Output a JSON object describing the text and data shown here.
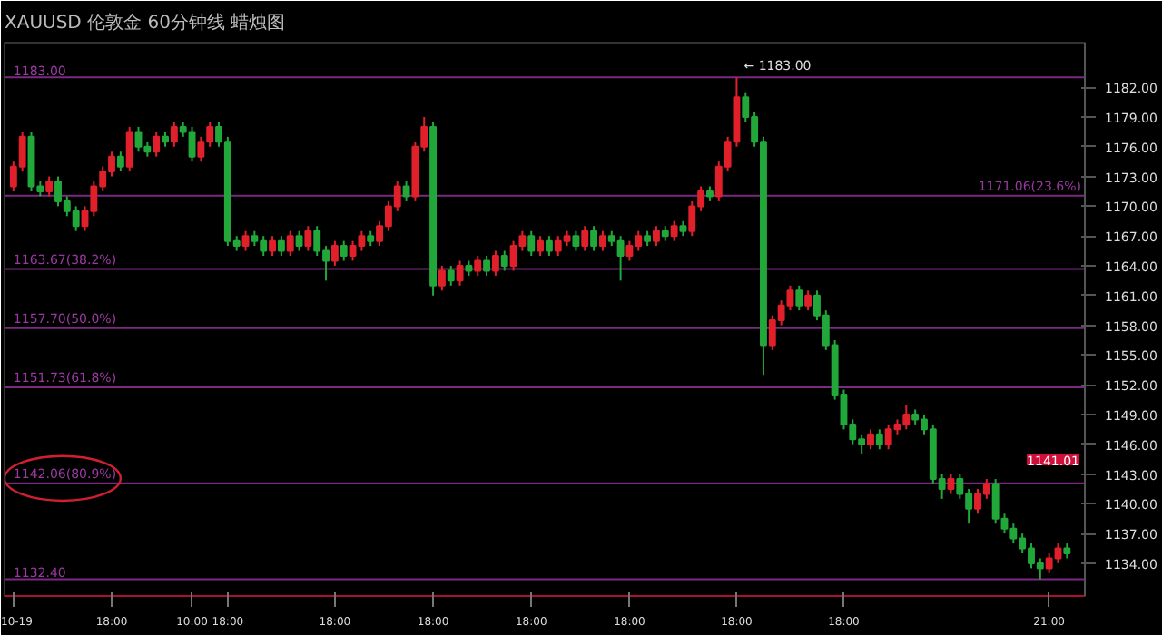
{
  "chart_data": {
    "type": "candlestick",
    "title": "XAUUSD 伦敦金 60分钟线 蜡烛图",
    "categories": [
      "10-19",
      null,
      null,
      null,
      null,
      null,
      null,
      null,
      null,
      null,
      null,
      "18:00",
      null,
      null,
      null,
      null,
      null,
      null,
      null,
      null,
      "10:00",
      null,
      null,
      null,
      "18:00",
      null,
      null,
      null,
      null,
      null,
      null,
      null,
      null,
      null,
      null,
      null,
      "18:00",
      null,
      null,
      null,
      null,
      null,
      null,
      null,
      null,
      null,
      null,
      "18:00",
      null,
      null,
      null,
      null,
      null,
      null,
      null,
      null,
      null,
      null,
      "18:00",
      null,
      null,
      null,
      null,
      null,
      null,
      null,
      null,
      null,
      null,
      "18:00",
      null,
      null,
      null,
      null,
      null,
      null,
      null,
      null,
      null,
      null,
      null,
      "18:00",
      null,
      null,
      null,
      null,
      null,
      null,
      null,
      null,
      null,
      null,
      null,
      "18:00",
      null,
      null,
      null,
      null,
      null,
      null,
      null,
      null,
      null,
      null,
      null,
      null,
      null,
      null,
      null,
      null,
      null,
      null,
      null,
      null,
      null,
      null,
      "21:00",
      null,
      null
    ],
    "ohlc": [
      [
        1172,
        1174.5,
        1171.5,
        1174
      ],
      [
        1174,
        1177.5,
        1173.5,
        1177
      ],
      [
        1177,
        1177.5,
        1171.5,
        1172
      ],
      [
        1172,
        1172.5,
        1171,
        1171.5
      ],
      [
        1171.5,
        1173,
        1171,
        1172.5
      ],
      [
        1172.5,
        1173,
        1170,
        1170.5
      ],
      [
        1170.5,
        1171,
        1169,
        1169.5
      ],
      [
        1169.5,
        1170,
        1167.5,
        1168
      ],
      [
        1168,
        1170,
        1167.5,
        1169.5
      ],
      [
        1169.5,
        1172.5,
        1169,
        1172
      ],
      [
        1172,
        1174,
        1171.5,
        1173.5
      ],
      [
        1173.5,
        1175.5,
        1173,
        1175
      ],
      [
        1175,
        1175.5,
        1173.5,
        1174
      ],
      [
        1174,
        1178,
        1173.5,
        1177.5
      ],
      [
        1177.5,
        1178,
        1175.5,
        1176
      ],
      [
        1176,
        1176.5,
        1175,
        1175.5
      ],
      [
        1175.5,
        1177.5,
        1175,
        1177
      ],
      [
        1177,
        1177.5,
        1176,
        1176.5
      ],
      [
        1176.5,
        1178.5,
        1176,
        1178
      ],
      [
        1178,
        1178.5,
        1177,
        1177.5
      ],
      [
        1177.5,
        1178,
        1174.5,
        1175
      ],
      [
        1175,
        1177,
        1174.5,
        1176.5
      ],
      [
        1176.5,
        1178.5,
        1176,
        1178
      ],
      [
        1178,
        1178.5,
        1176,
        1176.5
      ],
      [
        1176.5,
        1177,
        1166,
        1166.5
      ],
      [
        1166.5,
        1167,
        1165.5,
        1166
      ],
      [
        1166,
        1167.5,
        1165.5,
        1167
      ],
      [
        1167,
        1167.5,
        1166,
        1166.5
      ],
      [
        1166.5,
        1167,
        1165,
        1165.5
      ],
      [
        1165.5,
        1167,
        1165,
        1166.5
      ],
      [
        1166.5,
        1167,
        1165,
        1165.5
      ],
      [
        1165.5,
        1167.5,
        1165,
        1167
      ],
      [
        1167,
        1167.5,
        1165.5,
        1166
      ],
      [
        1166,
        1168,
        1165.5,
        1167.5
      ],
      [
        1167.5,
        1168,
        1165,
        1165.5
      ],
      [
        1165.5,
        1166,
        1162.5,
        1164.5
      ],
      [
        1164.5,
        1166.5,
        1164,
        1166
      ],
      [
        1166,
        1166.5,
        1164.5,
        1165
      ],
      [
        1165,
        1166.5,
        1164.5,
        1166
      ],
      [
        1166,
        1167.5,
        1165.5,
        1167
      ],
      [
        1167,
        1167.5,
        1166,
        1166.5
      ],
      [
        1166.5,
        1168.5,
        1166,
        1168
      ],
      [
        1168,
        1170.5,
        1167.5,
        1170
      ],
      [
        1170,
        1172.5,
        1169.5,
        1172
      ],
      [
        1172,
        1172.5,
        1170.5,
        1171
      ],
      [
        1171,
        1176.5,
        1170.5,
        1176
      ],
      [
        1176,
        1179,
        1175.5,
        1178
      ],
      [
        1178,
        1178.5,
        1161,
        1162
      ],
      [
        1162,
        1164,
        1161.5,
        1163.5
      ],
      [
        1163.5,
        1164,
        1162,
        1162.5
      ],
      [
        1162.5,
        1164.5,
        1162,
        1164
      ],
      [
        1164,
        1164.5,
        1163,
        1163.5
      ],
      [
        1163.5,
        1165,
        1163,
        1164.5
      ],
      [
        1164.5,
        1165,
        1163,
        1163.5
      ],
      [
        1163.5,
        1165.5,
        1163,
        1165
      ],
      [
        1165,
        1165.5,
        1163.5,
        1164
      ],
      [
        1164,
        1166.5,
        1163.5,
        1166
      ],
      [
        1166,
        1167.5,
        1165.5,
        1167
      ],
      [
        1167,
        1167.5,
        1165,
        1165.5
      ],
      [
        1165.5,
        1167,
        1165,
        1166.5
      ],
      [
        1166.5,
        1167,
        1165,
        1165.5
      ],
      [
        1165.5,
        1167,
        1165,
        1166.5
      ],
      [
        1166.5,
        1167.5,
        1166,
        1167
      ],
      [
        1167,
        1167.5,
        1165.5,
        1166
      ],
      [
        1166,
        1168,
        1165.5,
        1167.5
      ],
      [
        1167.5,
        1168,
        1165.5,
        1166
      ],
      [
        1166,
        1167.5,
        1165.5,
        1167
      ],
      [
        1167,
        1167.5,
        1166,
        1166.5
      ],
      [
        1166.5,
        1167,
        1162.5,
        1165
      ],
      [
        1165,
        1166.5,
        1164.5,
        1166
      ],
      [
        1166,
        1167.5,
        1165.5,
        1167
      ],
      [
        1167,
        1167.5,
        1166,
        1166.5
      ],
      [
        1166.5,
        1168,
        1166,
        1167.5
      ],
      [
        1167.5,
        1168,
        1166.5,
        1167
      ],
      [
        1167,
        1168.5,
        1166.5,
        1168
      ],
      [
        1168,
        1168.5,
        1167,
        1167.5
      ],
      [
        1167.5,
        1170.5,
        1167,
        1170
      ],
      [
        1170,
        1172,
        1169.5,
        1171.5
      ],
      [
        1171.5,
        1172,
        1170.5,
        1171
      ],
      [
        1171,
        1174.5,
        1170.5,
        1174
      ],
      [
        1174,
        1177,
        1173.5,
        1176.5
      ],
      [
        1176.5,
        1183,
        1176,
        1181
      ],
      [
        1181,
        1181.5,
        1178.5,
        1179
      ],
      [
        1179,
        1179.5,
        1176,
        1176.5
      ],
      [
        1176.5,
        1177,
        1153,
        1156
      ],
      [
        1156,
        1159,
        1155.5,
        1158.5
      ],
      [
        1158.5,
        1160.5,
        1158,
        1160
      ],
      [
        1160,
        1162,
        1159.5,
        1161.5
      ],
      [
        1161.5,
        1162,
        1159.5,
        1160
      ],
      [
        1160,
        1161.5,
        1159.5,
        1161
      ],
      [
        1161,
        1161.5,
        1158.5,
        1159
      ],
      [
        1159,
        1159.5,
        1155.5,
        1156
      ],
      [
        1156,
        1156.5,
        1150.5,
        1151
      ],
      [
        1151,
        1151.5,
        1147.5,
        1148
      ],
      [
        1148,
        1148.5,
        1146,
        1146.5
      ],
      [
        1146.5,
        1147,
        1145,
        1146
      ],
      [
        1146,
        1147.5,
        1145.5,
        1147
      ],
      [
        1147,
        1147.5,
        1145.5,
        1146
      ],
      [
        1146,
        1148,
        1145.5,
        1147.5
      ],
      [
        1147.5,
        1148.5,
        1147,
        1148
      ],
      [
        1148,
        1150,
        1147.5,
        1149
      ],
      [
        1149,
        1149.5,
        1148,
        1148.5
      ],
      [
        1148.5,
        1149,
        1147,
        1147.5
      ],
      [
        1147.5,
        1148,
        1142,
        1142.5
      ],
      [
        1142.5,
        1143,
        1140.5,
        1141.5
      ],
      [
        1141.5,
        1143,
        1141,
        1142.5
      ],
      [
        1142.5,
        1143,
        1140.5,
        1141
      ],
      [
        1141,
        1141.5,
        1138,
        1139.5
      ],
      [
        1139.5,
        1141.5,
        1139,
        1141
      ],
      [
        1141,
        1142.5,
        1140.5,
        1142
      ],
      [
        1142,
        1142.5,
        1138,
        1138.5
      ],
      [
        1138.5,
        1139,
        1137,
        1137.5
      ],
      [
        1137.5,
        1138,
        1136,
        1136.5
      ],
      [
        1136.5,
        1137,
        1135,
        1135.5
      ],
      [
        1135.5,
        1136,
        1133.5,
        1134
      ],
      [
        1134,
        1134.5,
        1132.4,
        1133.5
      ],
      [
        1133.5,
        1135,
        1133,
        1134.5
      ],
      [
        1134.5,
        1136,
        1134,
        1135.5
      ],
      [
        1135.5,
        1136,
        1134.5,
        1135
      ]
    ],
    "ylim": [
      1130.7,
      1186.5
    ],
    "yticks": [
      {
        "value": 1134,
        "label": "1134.00"
      },
      {
        "value": 1137,
        "label": "1137.00"
      },
      {
        "value": 1140,
        "label": "1140.00"
      },
      {
        "value": 1143,
        "label": "1143.00"
      },
      {
        "value": 1146,
        "label": "1146.00"
      },
      {
        "value": 1149,
        "label": "1149.00"
      },
      {
        "value": 1152,
        "label": "1152.00"
      },
      {
        "value": 1155,
        "label": "1155.00"
      },
      {
        "value": 1158,
        "label": "1158.00"
      },
      {
        "value": 1161,
        "label": "1161.00"
      },
      {
        "value": 1164,
        "label": "1164.00"
      },
      {
        "value": 1167,
        "label": "1167.00"
      },
      {
        "value": 1170,
        "label": "1170.00"
      },
      {
        "value": 1173,
        "label": "1173.00"
      },
      {
        "value": 1176,
        "label": "1176.00"
      },
      {
        "value": 1179,
        "label": "1179.00"
      },
      {
        "value": 1182,
        "label": "1182.00"
      }
    ],
    "ref_lines": [
      {
        "axis": "y",
        "value": 1183,
        "label": "1183.00",
        "color": "#7a2a80"
      },
      {
        "axis": "y",
        "value": 1171.06,
        "label": "1171.06(23.6%)",
        "color": "#7a2a80"
      },
      {
        "axis": "y",
        "value": 1163.67,
        "label": "1163.67(38.2%)",
        "color": "#7a2a80"
      },
      {
        "axis": "y",
        "value": 1157.7,
        "label": "1157.70(50.0%)",
        "color": "#7a2a80"
      },
      {
        "axis": "y",
        "value": 1151.73,
        "label": "1151.73(61.8%)",
        "color": "#7a2a80"
      },
      {
        "axis": "y",
        "value": 1142.06,
        "label": "1142.06(80.9%)",
        "color": "#7a2a80"
      },
      {
        "axis": "y",
        "value": 1132.4,
        "label": "1132.40",
        "color": "#7a2a80"
      }
    ],
    "annotations": [
      {
        "text": "← 1183.00",
        "y": 1183
      },
      "1141.01"
    ],
    "grid": false
  }
}
